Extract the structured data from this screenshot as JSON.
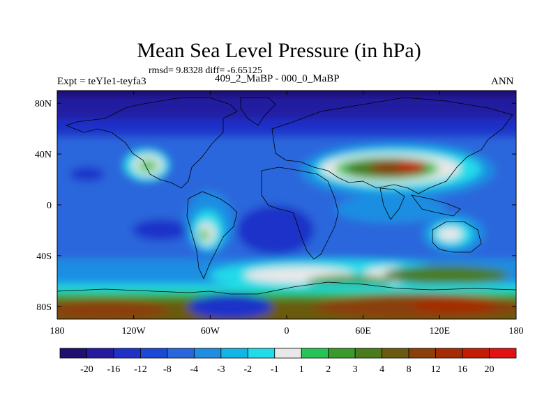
{
  "chart_data": {
    "type": "heatmap",
    "title": "Mean Sea Level Pressure (in hPa)",
    "stats_label": "rmsd= 9.8328 diff= -6.65125",
    "experiment_label": "Expt = teYIe1-teyfa3",
    "comparison_label": "409_2_MaBP - 000_0_MaBP",
    "season_label": "ANN",
    "x_ticks": [
      {
        "value": -180,
        "label": "180"
      },
      {
        "value": -120,
        "label": "120W"
      },
      {
        "value": -60,
        "label": "60W"
      },
      {
        "value": 0,
        "label": "0"
      },
      {
        "value": 60,
        "label": "60E"
      },
      {
        "value": 120,
        "label": "120E"
      },
      {
        "value": 180,
        "label": "180"
      }
    ],
    "y_ticks": [
      {
        "value": 80,
        "label": "80N"
      },
      {
        "value": 40,
        "label": "40N"
      },
      {
        "value": 0,
        "label": "0"
      },
      {
        "value": -40,
        "label": "40S"
      },
      {
        "value": -80,
        "label": "80S"
      }
    ],
    "xlim": [
      -180,
      180
    ],
    "ylim": [
      -90,
      90
    ],
    "colorbar": {
      "colors": [
        "#1f0f6e",
        "#241aa0",
        "#1e32c8",
        "#1c48d8",
        "#2a66dc",
        "#1e8ee2",
        "#13b4e6",
        "#20dce8",
        "#e8e8e8",
        "#24c456",
        "#3a9a2c",
        "#4a7c1c",
        "#6a5a10",
        "#8a4008",
        "#a62a04",
        "#c41c04",
        "#e21212"
      ],
      "labels": [
        "-20",
        "-16",
        "-12",
        "-8",
        "-4",
        "-3",
        "-2",
        "-1",
        "1",
        "2",
        "3",
        "4",
        "8",
        "12",
        "16",
        "20"
      ]
    },
    "field_features": [
      {
        "name": "north-high-lat-low",
        "lon": [
          -180,
          180
        ],
        "lat": [
          58,
          90
        ],
        "value": -20
      },
      {
        "name": "mid-lat-north-band",
        "lon": [
          -180,
          180
        ],
        "lat": [
          40,
          58
        ],
        "value": -12
      },
      {
        "name": "tropical-band",
        "lon": [
          -180,
          180
        ],
        "lat": [
          -45,
          40
        ],
        "value": -8
      },
      {
        "name": "asia-high",
        "lon": [
          60,
          140
        ],
        "lat": [
          20,
          40
        ],
        "value": 12
      },
      {
        "name": "na-west-high",
        "lon": [
          -125,
          -100
        ],
        "lat": [
          25,
          40
        ],
        "value": 3
      },
      {
        "name": "south-america-high",
        "lon": [
          -75,
          -55
        ],
        "lat": [
          -30,
          -15
        ],
        "value": 2
      },
      {
        "name": "australia-high",
        "lon": [
          115,
          145
        ],
        "lat": [
          -30,
          -15
        ],
        "value": 1
      },
      {
        "name": "southern-ocean-belt",
        "lon": [
          -20,
          130
        ],
        "lat": [
          -62,
          -50
        ],
        "value": 1
      },
      {
        "name": "antarctic-high",
        "lon": [
          -180,
          180
        ],
        "lat": [
          -90,
          -65
        ],
        "value": 8
      },
      {
        "name": "southern-max",
        "lon": [
          -180,
          -120
        ],
        "lat": [
          -90,
          -78
        ],
        "value": 12
      }
    ]
  }
}
